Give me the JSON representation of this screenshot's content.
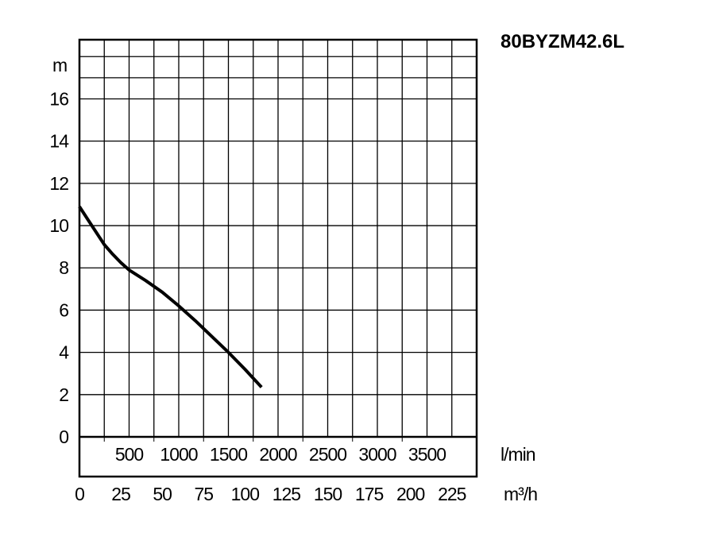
{
  "chart_data": {
    "type": "line",
    "title": "80BYZM42.6L",
    "ylabel": "m",
    "ylim": [
      0,
      18.8
    ],
    "y_ticks": [
      "0",
      "2",
      "4",
      "6",
      "8",
      "10",
      "12",
      "14",
      "16"
    ],
    "x_primary": {
      "unit": "m³/h",
      "xlim": [
        0,
        240
      ],
      "ticks": [
        "0",
        "25",
        "50",
        "75",
        "100",
        "125",
        "150",
        "175",
        "200",
        "225"
      ]
    },
    "x_secondary": {
      "unit": "l/min",
      "ticks": [
        "500",
        "1000",
        "1500",
        "2000",
        "2500",
        "3000",
        "3500"
      ]
    },
    "grid": true,
    "series": [
      {
        "color": "#000000",
        "x": [
          0,
          5,
          10,
          15,
          20,
          25,
          30,
          40,
          50,
          60,
          70,
          80,
          90,
          100,
          110
        ],
        "y": [
          10.9,
          10.3,
          9.7,
          9.1,
          8.65,
          8.25,
          7.9,
          7.4,
          6.85,
          6.2,
          5.5,
          4.75,
          4.0,
          3.2,
          2.35
        ]
      }
    ]
  }
}
